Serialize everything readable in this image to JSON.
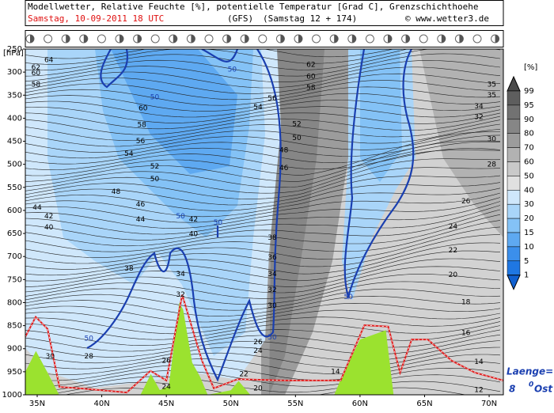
{
  "chart_data": {
    "type": "cross-section",
    "title": "Modellwetter, Relative Feuchte [%], potentielle Temperatur [Grad C], Grenzschichthoehe",
    "run": "Samstag, 10-09-2011  18 UTC",
    "model": "(GFS)",
    "forecast": "(Samstag 12 + 174)",
    "credit": "© www.wetter3.de",
    "y_label": "[hPa]",
    "xlim": [
      34.08,
      71.1
    ],
    "ylim": [
      1000,
      250
    ],
    "xticks": [
      {
        "value": 35,
        "label": "35N"
      },
      {
        "value": 40,
        "label": "40N"
      },
      {
        "value": 45,
        "label": "45N"
      },
      {
        "value": 50,
        "label": "50N"
      },
      {
        "value": 55,
        "label": "55N"
      },
      {
        "value": 60,
        "label": "60N"
      },
      {
        "value": 65,
        "label": "65N"
      },
      {
        "value": 70,
        "label": "70N"
      }
    ],
    "yticks": [
      250,
      300,
      350,
      400,
      450,
      500,
      550,
      600,
      650,
      700,
      750,
      800,
      850,
      900,
      950,
      1000
    ],
    "colorbar": {
      "title": "[%]",
      "levels": [
        99,
        95,
        90,
        80,
        70,
        60,
        50,
        40,
        30,
        20,
        15,
        10,
        5,
        1
      ],
      "colors": [
        "#4a4a4a",
        "#5e5e5e",
        "#727272",
        "#868686",
        "#9c9c9c",
        "#b2b2b2",
        "#c9c9c9",
        "#e0e0e0",
        "#cfe7fb",
        "#a9d5f9",
        "#84c2f6",
        "#5ea9f1",
        "#3b8feb",
        "#1f77e2",
        "#1060d0"
      ]
    },
    "terrain": {
      "color": "#9be22f",
      "x": [
        34.08,
        34.9,
        35.8,
        36.7,
        43.0,
        43.8,
        44.5,
        45.2,
        46.0,
        46.3,
        47.0,
        47.6,
        48.2,
        50.0,
        50.6,
        51.5,
        58.0,
        58.6,
        60.0,
        62.0,
        62.6,
        71.1
      ],
      "values": [
        950,
        905,
        952,
        1000,
        1000,
        955,
        990,
        980,
        800,
        815,
        930,
        960,
        1000,
        990,
        970,
        1000,
        1000,
        960,
        880,
        860,
        1000,
        1000
      ]
    },
    "boundary_layer": {
      "color": "#e02020",
      "x": [
        34.08,
        34.88,
        35.8,
        36.72,
        38.25,
        41.93,
        43.77,
        45.0,
        46.23,
        47.76,
        48.68,
        50.52,
        54.2,
        58.5,
        60.34,
        62.18,
        63.1,
        64.0,
        65.25,
        67.1,
        68.9,
        71.1
      ],
      "values": [
        874,
        831,
        857,
        983,
        986,
        995,
        948,
        969,
        783,
        926,
        986,
        966,
        969,
        969,
        849,
        852,
        952,
        880,
        880,
        926,
        952,
        969
      ]
    },
    "contour_labels": [
      {
        "lat": 35.9,
        "p": 274,
        "label": "64"
      },
      {
        "lat": 34.9,
        "p": 290,
        "label": "62"
      },
      {
        "lat": 34.9,
        "p": 302,
        "label": "60"
      },
      {
        "lat": 34.9,
        "p": 327,
        "label": "58"
      },
      {
        "lat": 50.1,
        "p": 295,
        "label": "50",
        "color": "#1a3fb0"
      },
      {
        "lat": 44.1,
        "p": 355,
        "label": "50",
        "color": "#1a3fb0"
      },
      {
        "lat": 43.2,
        "p": 379,
        "label": "60"
      },
      {
        "lat": 43.1,
        "p": 415,
        "label": "58"
      },
      {
        "lat": 43.0,
        "p": 450,
        "label": "56"
      },
      {
        "lat": 42.1,
        "p": 477,
        "label": "54"
      },
      {
        "lat": 44.1,
        "p": 505,
        "label": "52"
      },
      {
        "lat": 44.1,
        "p": 532,
        "label": "50"
      },
      {
        "lat": 41.1,
        "p": 560,
        "label": "48"
      },
      {
        "lat": 43.0,
        "p": 587,
        "label": "46"
      },
      {
        "lat": 43.0,
        "p": 620,
        "label": "44"
      },
      {
        "lat": 35.0,
        "p": 594,
        "label": "44"
      },
      {
        "lat": 35.9,
        "p": 613,
        "label": "42"
      },
      {
        "lat": 35.9,
        "p": 637,
        "label": "40"
      },
      {
        "lat": 46.1,
        "p": 613,
        "label": "50",
        "color": "#1a3fb0"
      },
      {
        "lat": 47.1,
        "p": 620,
        "label": "42"
      },
      {
        "lat": 47.1,
        "p": 652,
        "label": "40"
      },
      {
        "lat": 49.0,
        "p": 627,
        "label": "50",
        "color": "#1a3fb0"
      },
      {
        "lat": 42.1,
        "p": 726,
        "label": "38"
      },
      {
        "lat": 46.1,
        "p": 738,
        "label": "34"
      },
      {
        "lat": 46.1,
        "p": 783,
        "label": "32"
      },
      {
        "lat": 53.2,
        "p": 357,
        "label": "56"
      },
      {
        "lat": 52.1,
        "p": 376,
        "label": "54"
      },
      {
        "lat": 55.1,
        "p": 413,
        "label": "52"
      },
      {
        "lat": 55.1,
        "p": 443,
        "label": "50"
      },
      {
        "lat": 54.1,
        "p": 470,
        "label": "48"
      },
      {
        "lat": 54.1,
        "p": 508,
        "label": "46"
      },
      {
        "lat": 53.2,
        "p": 659,
        "label": "38"
      },
      {
        "lat": 53.2,
        "p": 702,
        "label": "36"
      },
      {
        "lat": 53.2,
        "p": 738,
        "label": "34"
      },
      {
        "lat": 53.2,
        "p": 773,
        "label": "32"
      },
      {
        "lat": 53.2,
        "p": 807,
        "label": "30"
      },
      {
        "lat": 53.2,
        "p": 876,
        "label": "50",
        "color": "#1a3fb0"
      },
      {
        "lat": 52.1,
        "p": 886,
        "label": "26"
      },
      {
        "lat": 52.1,
        "p": 905,
        "label": "24"
      },
      {
        "lat": 56.2,
        "p": 284,
        "label": "62"
      },
      {
        "lat": 56.2,
        "p": 310,
        "label": "60"
      },
      {
        "lat": 56.2,
        "p": 334,
        "label": "58"
      },
      {
        "lat": 70.2,
        "p": 327,
        "label": "35"
      },
      {
        "lat": 70.2,
        "p": 350,
        "label": "35"
      },
      {
        "lat": 69.2,
        "p": 374,
        "label": "34"
      },
      {
        "lat": 69.2,
        "p": 398,
        "label": "32"
      },
      {
        "lat": 70.2,
        "p": 446,
        "label": "30"
      },
      {
        "lat": 70.2,
        "p": 501,
        "label": "28"
      },
      {
        "lat": 68.2,
        "p": 580,
        "label": "26"
      },
      {
        "lat": 67.2,
        "p": 635,
        "label": "24"
      },
      {
        "lat": 67.2,
        "p": 687,
        "label": "22"
      },
      {
        "lat": 67.2,
        "p": 740,
        "label": "20"
      },
      {
        "lat": 68.2,
        "p": 799,
        "label": "18"
      },
      {
        "lat": 68.2,
        "p": 866,
        "label": "16"
      },
      {
        "lat": 69.2,
        "p": 929,
        "label": "14"
      },
      {
        "lat": 69.2,
        "p": 990,
        "label": "12"
      },
      {
        "lat": 58.1,
        "p": 950,
        "label": "14"
      },
      {
        "lat": 59.1,
        "p": 788,
        "label": "50",
        "color": "#1a3fb0"
      },
      {
        "lat": 39.0,
        "p": 878,
        "label": "50",
        "color": "#1a3fb0"
      },
      {
        "lat": 39.0,
        "p": 917,
        "label": "28"
      },
      {
        "lat": 36.0,
        "p": 917,
        "label": "30"
      },
      {
        "lat": 45.0,
        "p": 926,
        "label": "26"
      },
      {
        "lat": 45.0,
        "p": 983,
        "label": "24"
      },
      {
        "lat": 51.0,
        "p": 955,
        "label": "22"
      },
      {
        "lat": 52.1,
        "p": 986,
        "label": "20"
      }
    ],
    "longitude": {
      "label": "Laenge=",
      "value": 8,
      "degree": "0",
      "unit": "Ost"
    }
  }
}
